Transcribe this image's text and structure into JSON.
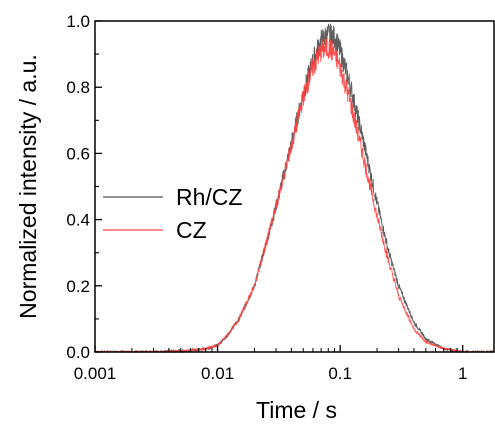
{
  "chart_data": {
    "type": "line",
    "title": "",
    "xlabel": "Time / s",
    "ylabel": "Normalized intensity / a.u.",
    "x_scale": "log",
    "xlim": [
      0.001,
      1.8
    ],
    "ylim": [
      0.0,
      1.0
    ],
    "x_ticks": [
      0.001,
      0.01,
      0.1,
      1
    ],
    "x_tick_labels": [
      "0.001",
      "0.01",
      "0.1",
      "1"
    ],
    "y_ticks": [
      0.0,
      0.2,
      0.4,
      0.6,
      0.8,
      1.0
    ],
    "y_tick_labels": [
      "0.0",
      "0.2",
      "0.4",
      "0.6",
      "0.8",
      "1.0"
    ],
    "grid": false,
    "legend_position": "left-middle",
    "series": [
      {
        "name": "Rh/CZ",
        "color": "#555555",
        "x": [
          0.001,
          0.003,
          0.006,
          0.008,
          0.01,
          0.012,
          0.015,
          0.02,
          0.025,
          0.03,
          0.04,
          0.05,
          0.06,
          0.07,
          0.08,
          0.09,
          0.1,
          0.12,
          0.15,
          0.2,
          0.25,
          0.3,
          0.4,
          0.5,
          0.7,
          1.0,
          1.8
        ],
        "y": [
          0.0,
          0.0,
          0.005,
          0.01,
          0.02,
          0.05,
          0.1,
          0.2,
          0.33,
          0.44,
          0.63,
          0.78,
          0.88,
          0.94,
          0.96,
          0.95,
          0.91,
          0.81,
          0.66,
          0.45,
          0.3,
          0.2,
          0.09,
          0.04,
          0.01,
          0.0,
          0.0
        ]
      },
      {
        "name": "CZ",
        "color": "#ff4040",
        "x": [
          0.001,
          0.003,
          0.006,
          0.008,
          0.01,
          0.012,
          0.015,
          0.02,
          0.025,
          0.03,
          0.04,
          0.05,
          0.06,
          0.07,
          0.08,
          0.09,
          0.1,
          0.12,
          0.15,
          0.2,
          0.25,
          0.3,
          0.4,
          0.5,
          0.7,
          1.0,
          1.8
        ],
        "y": [
          0.0,
          0.0,
          0.005,
          0.01,
          0.02,
          0.05,
          0.1,
          0.2,
          0.33,
          0.44,
          0.62,
          0.77,
          0.86,
          0.91,
          0.92,
          0.9,
          0.86,
          0.76,
          0.61,
          0.41,
          0.27,
          0.17,
          0.07,
          0.03,
          0.01,
          0.0,
          0.0
        ]
      }
    ]
  }
}
